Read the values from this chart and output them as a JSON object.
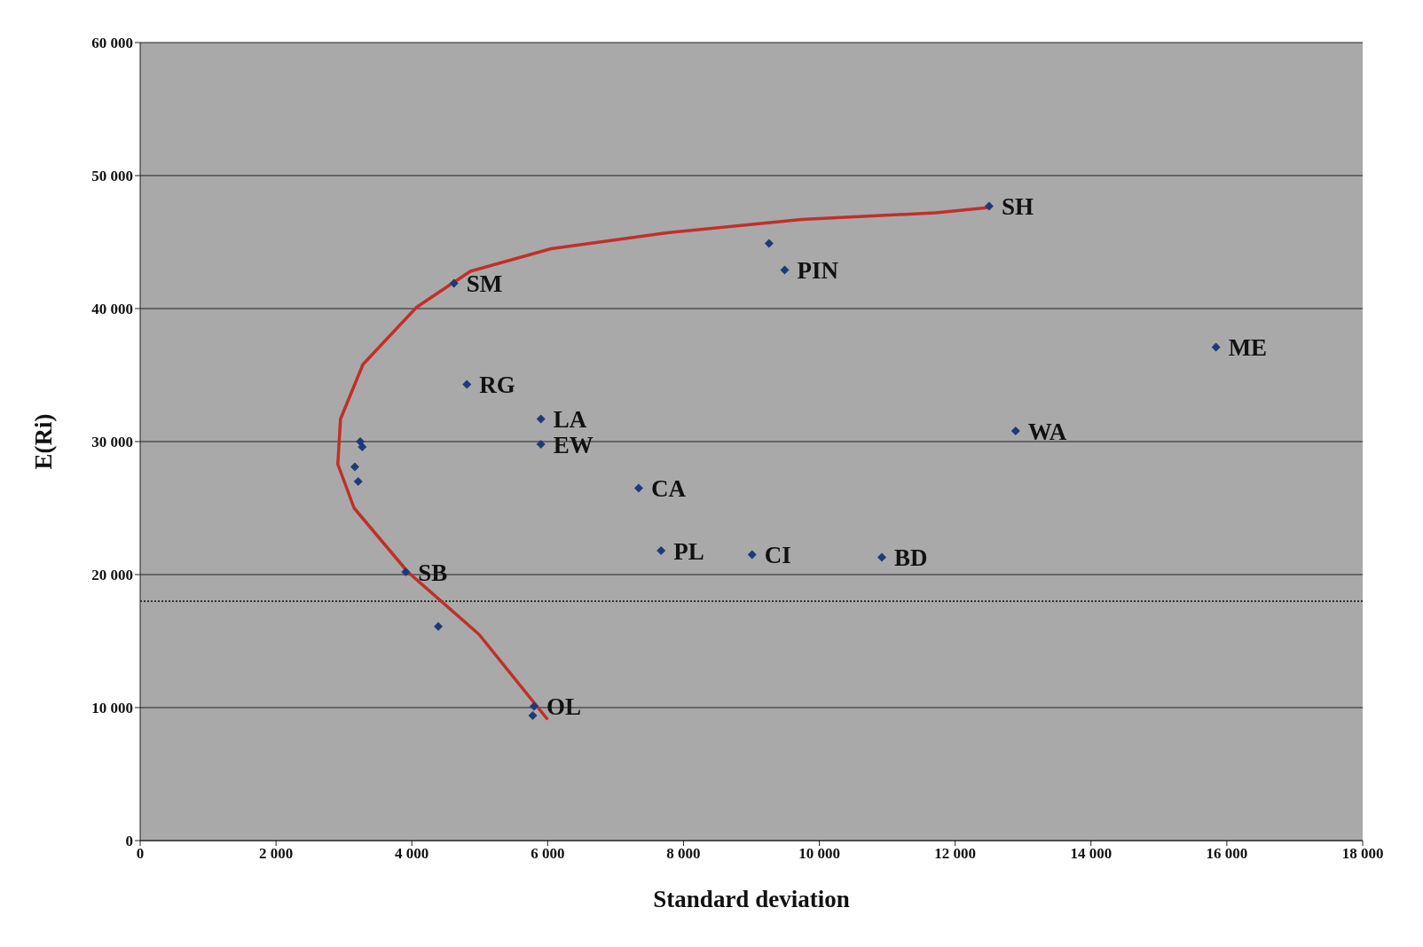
{
  "chart_data": {
    "type": "scatter",
    "xlabel": "Standard deviation",
    "ylabel": "E(Ri)",
    "xlim": [
      0,
      18000
    ],
    "xticks": [
      {
        "value": 0,
        "label": "0"
      },
      {
        "value": 2000,
        "label": "2 000"
      },
      {
        "value": 4000,
        "label": "4 000"
      },
      {
        "value": 6000,
        "label": "6 000"
      },
      {
        "value": 8000,
        "label": "8 000"
      },
      {
        "value": 10000,
        "label": "10 000"
      },
      {
        "value": 12000,
        "label": "12 000"
      },
      {
        "value": 14000,
        "label": "14 000"
      },
      {
        "value": 16000,
        "label": "16 000"
      },
      {
        "value": 18000,
        "label": "18 000"
      }
    ],
    "ylim": [
      0,
      60000
    ],
    "yticks": [
      {
        "value": 0,
        "label": "0"
      },
      {
        "value": 10000,
        "label": "10 000"
      },
      {
        "value": 20000,
        "label": "20 000"
      },
      {
        "value": 30000,
        "label": "30 000"
      },
      {
        "value": 40000,
        "label": "40 000"
      },
      {
        "value": 50000,
        "label": "50 000"
      },
      {
        "value": 60000,
        "label": "60 000"
      }
    ],
    "grid": "y",
    "legend": false,
    "series": [
      {
        "color": "#1f3a7a",
        "marker": "diamond",
        "x": [
          12500,
          9260,
          9490,
          4620,
          15840,
          4810,
          5900,
          5900,
          12890,
          3240,
          3270,
          3160,
          3210,
          7340,
          7670,
          9010,
          10920,
          3910,
          4390,
          5800,
          5780
        ],
        "values": [
          47700,
          44900,
          42900,
          41900,
          37100,
          34300,
          31700,
          29800,
          30800,
          30000,
          29600,
          28100,
          27000,
          26500,
          21800,
          21500,
          21300,
          20200,
          16100,
          10100,
          9400
        ]
      },
      {
        "type": "line",
        "color": "#c0302a",
        "line_style": "solid",
        "x": [
          12500,
          11710,
          9740,
          7760,
          6050,
          4860,
          4070,
          3280,
          2950,
          2910,
          3150,
          3940,
          4990,
          6000
        ],
        "values": [
          47600,
          47200,
          46700,
          45700,
          44500,
          42800,
          40100,
          35800,
          31700,
          28300,
          25000,
          20200,
          15500,
          9100
        ]
      }
    ],
    "ref_lines": [
      {
        "axis": "y",
        "value": 18000,
        "line_style": "dotted",
        "color": "#333333"
      }
    ],
    "annotations": [
      {
        "text": "SH",
        "x": 12500,
        "y": 47700
      },
      {
        "text": "PIN",
        "x": 9490,
        "y": 42900
      },
      {
        "text": "SM",
        "x": 4620,
        "y": 41900
      },
      {
        "text": "ME",
        "x": 15840,
        "y": 37100
      },
      {
        "text": "RG",
        "x": 4810,
        "y": 34300
      },
      {
        "text": "LA",
        "x": 5900,
        "y": 31700
      },
      {
        "text": "EW",
        "x": 5900,
        "y": 29800
      },
      {
        "text": "WA",
        "x": 12890,
        "y": 30800
      },
      {
        "text": "CA",
        "x": 7340,
        "y": 26500
      },
      {
        "text": "PL",
        "x": 7670,
        "y": 21800
      },
      {
        "text": "CI",
        "x": 9010,
        "y": 21500
      },
      {
        "text": "BD",
        "x": 10920,
        "y": 21300
      },
      {
        "text": "SB",
        "x": 3910,
        "y": 20200
      },
      {
        "text": "OL",
        "x": 5800,
        "y": 10100
      }
    ]
  }
}
